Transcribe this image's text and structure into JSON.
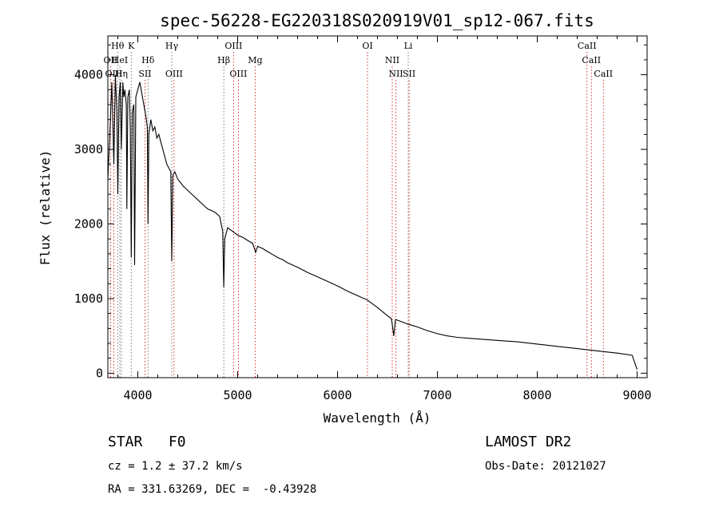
{
  "chart_data": {
    "type": "line",
    "title": "spec-56228-EG220318S020919V01_sp12-067.fits",
    "xlabel": "Wavelength (Å)",
    "ylabel": "Flux (relative)",
    "xlim": [
      3700,
      9100
    ],
    "ylim": [
      -60,
      4520
    ],
    "xticks": [
      4000,
      5000,
      6000,
      7000,
      8000,
      9000
    ],
    "yticks": [
      0,
      1000,
      2000,
      3000,
      4000
    ],
    "series": [
      {
        "name": "spectrum",
        "points": [
          [
            3700,
            2600
          ],
          [
            3720,
            3200
          ],
          [
            3740,
            3900
          ],
          [
            3760,
            2800
          ],
          [
            3775,
            4000
          ],
          [
            3790,
            3500
          ],
          [
            3800,
            2400
          ],
          [
            3812,
            3700
          ],
          [
            3825,
            3900
          ],
          [
            3835,
            3000
          ],
          [
            3850,
            3900
          ],
          [
            3860,
            3700
          ],
          [
            3870,
            3800
          ],
          [
            3885,
            3600
          ],
          [
            3890,
            2200
          ],
          [
            3900,
            3700
          ],
          [
            3915,
            3800
          ],
          [
            3925,
            3300
          ],
          [
            3934,
            1550
          ],
          [
            3945,
            3500
          ],
          [
            3960,
            3600
          ],
          [
            3968,
            1450
          ],
          [
            3980,
            3700
          ],
          [
            4000,
            3800
          ],
          [
            4020,
            3900
          ],
          [
            4040,
            3750
          ],
          [
            4060,
            3600
          ],
          [
            4080,
            3450
          ],
          [
            4095,
            3300
          ],
          [
            4102,
            2000
          ],
          [
            4110,
            3200
          ],
          [
            4130,
            3400
          ],
          [
            4150,
            3250
          ],
          [
            4170,
            3300
          ],
          [
            4190,
            3150
          ],
          [
            4210,
            3200
          ],
          [
            4230,
            3100
          ],
          [
            4250,
            3000
          ],
          [
            4270,
            2900
          ],
          [
            4290,
            2800
          ],
          [
            4310,
            2750
          ],
          [
            4330,
            2700
          ],
          [
            4340,
            1500
          ],
          [
            4350,
            2650
          ],
          [
            4370,
            2700
          ],
          [
            4400,
            2600
          ],
          [
            4430,
            2550
          ],
          [
            4460,
            2500
          ],
          [
            4500,
            2450
          ],
          [
            4540,
            2400
          ],
          [
            4580,
            2350
          ],
          [
            4620,
            2300
          ],
          [
            4660,
            2250
          ],
          [
            4700,
            2200
          ],
          [
            4740,
            2180
          ],
          [
            4780,
            2150
          ],
          [
            4820,
            2100
          ],
          [
            4850,
            1900
          ],
          [
            4861,
            1150
          ],
          [
            4870,
            1800
          ],
          [
            4900,
            1950
          ],
          [
            4950,
            1900
          ],
          [
            5000,
            1850
          ],
          [
            5050,
            1820
          ],
          [
            5100,
            1780
          ],
          [
            5150,
            1740
          ],
          [
            5180,
            1620
          ],
          [
            5200,
            1700
          ],
          [
            5250,
            1670
          ],
          [
            5300,
            1630
          ],
          [
            5350,
            1590
          ],
          [
            5400,
            1550
          ],
          [
            5450,
            1520
          ],
          [
            5500,
            1480
          ],
          [
            5600,
            1420
          ],
          [
            5700,
            1350
          ],
          [
            5800,
            1290
          ],
          [
            5900,
            1230
          ],
          [
            6000,
            1170
          ],
          [
            6100,
            1100
          ],
          [
            6200,
            1040
          ],
          [
            6300,
            980
          ],
          [
            6400,
            880
          ],
          [
            6500,
            770
          ],
          [
            6540,
            730
          ],
          [
            6563,
            500
          ],
          [
            6580,
            720
          ],
          [
            6600,
            710
          ],
          [
            6700,
            660
          ],
          [
            6800,
            620
          ],
          [
            6900,
            570
          ],
          [
            7000,
            530
          ],
          [
            7100,
            500
          ],
          [
            7200,
            480
          ],
          [
            7400,
            460
          ],
          [
            7600,
            440
          ],
          [
            7800,
            420
          ],
          [
            8000,
            390
          ],
          [
            8200,
            360
          ],
          [
            8400,
            330
          ],
          [
            8600,
            300
          ],
          [
            8800,
            270
          ],
          [
            8950,
            240
          ],
          [
            9000,
            50
          ]
        ]
      }
    ],
    "spectral_lines": [
      {
        "label": "Hθ",
        "x": 3798,
        "row": 0,
        "color": "#000000"
      },
      {
        "label": "OII",
        "x": 3727,
        "row": 1,
        "color": "#cc0000"
      },
      {
        "label": "HeI",
        "x": 3820,
        "row": 1,
        "color": "#000000"
      },
      {
        "label": "OIII",
        "x": 3760,
        "row": 2,
        "color": "#cc0000"
      },
      {
        "label": "Hη",
        "x": 3835,
        "row": 2,
        "color": "#000000"
      },
      {
        "label": "K",
        "x": 3934,
        "row": 0,
        "color": "#000000"
      },
      {
        "label": "Hδ",
        "x": 4102,
        "row": 1,
        "color": "#000000"
      },
      {
        "label": "SII",
        "x": 4072,
        "row": 2,
        "color": "#cc0000"
      },
      {
        "label": "Hγ",
        "x": 4340,
        "row": 0,
        "color": "#000000"
      },
      {
        "label": "OIII",
        "x": 4363,
        "row": 2,
        "color": "#cc0000"
      },
      {
        "label": "OIII",
        "x": 4959,
        "row": 0,
        "color": "#cc0000"
      },
      {
        "label": "Hβ",
        "x": 4861,
        "row": 1,
        "color": "#000000"
      },
      {
        "label": "Mg",
        "x": 5175,
        "row": 1,
        "color": "#cc0000"
      },
      {
        "label": "OIII",
        "x": 5007,
        "row": 2,
        "color": "#cc0000"
      },
      {
        "label": "OI",
        "x": 6300,
        "row": 0,
        "color": "#cc0000"
      },
      {
        "label": "Li",
        "x": 6708,
        "row": 0,
        "color": "#000000"
      },
      {
        "label": "NII",
        "x": 6548,
        "row": 1,
        "color": "#cc0000"
      },
      {
        "label": "NII",
        "x": 6584,
        "row": 2,
        "color": "#cc0000"
      },
      {
        "label": "SII",
        "x": 6717,
        "row": 2,
        "color": "#cc0000"
      },
      {
        "label": "CaII",
        "x": 8498,
        "row": 0,
        "color": "#cc0000"
      },
      {
        "label": "CaII",
        "x": 8542,
        "row": 1,
        "color": "#cc0000"
      },
      {
        "label": "CaII",
        "x": 8662,
        "row": 2,
        "color": "#cc0000"
      }
    ]
  },
  "info": {
    "object": "STAR   F0",
    "survey": "LAMOST DR2",
    "cz": "cz = 1.2 ± 37.2 km/s",
    "obs_date": "Obs-Date: 20121027",
    "coords": "RA = 331.63269, DEC =  -0.43928"
  },
  "colors": {
    "spectrum": "#000000",
    "line_markers": "#cc0000"
  }
}
